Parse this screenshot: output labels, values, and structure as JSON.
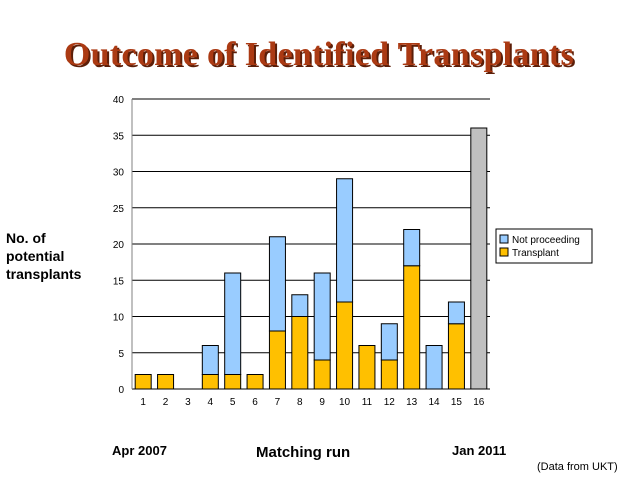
{
  "title": "Outcome of Identified Transplants",
  "ylabel_lines": [
    "No. of",
    "potential",
    "transplants"
  ],
  "footer": {
    "start": "Apr 2007",
    "xlabel": "Matching run",
    "end": "Jan 2011",
    "source": "(Data from UKT)"
  },
  "chart_data": {
    "type": "bar",
    "stacked": true,
    "title": "Outcome of Identified Transplants",
    "xlabel": "Matching run",
    "ylabel": "No. of potential transplants",
    "categories": [
      "1",
      "2",
      "3",
      "4",
      "5",
      "6",
      "7",
      "8",
      "9",
      "10",
      "11",
      "12",
      "13",
      "14",
      "15",
      "16"
    ],
    "ylim": [
      0,
      40
    ],
    "yticks": [
      0,
      5,
      10,
      15,
      20,
      25,
      30,
      35,
      40
    ],
    "grid": true,
    "legend_position": "right",
    "series": [
      {
        "name": "Transplant",
        "color": "#ffc000",
        "values": [
          2,
          2,
          0,
          2,
          2,
          2,
          8,
          10,
          4,
          12,
          6,
          4,
          17,
          0,
          9,
          0
        ]
      },
      {
        "name": "Not proceeding",
        "color": "#99ccff",
        "values": [
          0,
          0,
          0,
          4,
          14,
          0,
          13,
          3,
          12,
          17,
          0,
          5,
          5,
          6,
          3,
          0
        ]
      }
    ],
    "extra_bars": [
      {
        "category": "16",
        "value": 36,
        "color": "#c0c0c0"
      }
    ]
  }
}
